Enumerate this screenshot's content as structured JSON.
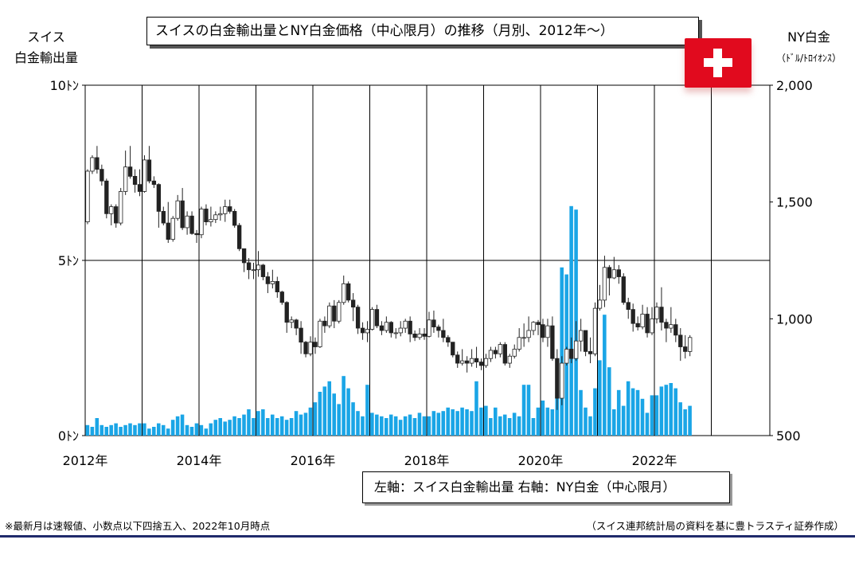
{
  "title": "スイスの白金輸出量とNY白金価格（中心限月）の推移（月別、2012年～）",
  "left_axis_title_1": "スイス",
  "left_axis_title_2": "白金輸出量",
  "right_axis_title_1": "NY白金",
  "right_axis_title_2": "（ﾄﾞﾙ/ﾄﾛｲｵﾝｽ）",
  "legend_text": "左軸：スイス白金輸出量  右軸：NY白金（中心限月）",
  "footnote_left": "※最新月は速報値、小数点以下四捨五入、2022年10月時点",
  "footnote_right": "（スイス連邦統計局の資料を基に豊トラスティ証券作成）",
  "flag_icon": "swiss-flag-icon",
  "colors": {
    "bar": "#1aa5e6",
    "up_candle": "#ffffff",
    "down_candle": "#222222",
    "grid": "#000000",
    "flag": "#e10a1e"
  },
  "chart_data": {
    "type": "bar+candlestick",
    "x_tick_labels": [
      "2012年",
      "2014年",
      "2016年",
      "2018年",
      "2020年",
      "2022年"
    ],
    "left_axis": {
      "tick_labels": [
        "0ﾄﾝ",
        "5ﾄﾝ",
        "10ﾄﾝ"
      ],
      "ylim": [
        0,
        10
      ]
    },
    "right_axis": {
      "tick_labels": [
        "500",
        "1,000",
        "1,500",
        "2,000"
      ],
      "ylim": [
        500,
        2000
      ]
    },
    "grid": true,
    "start_month": "2012-01",
    "series": [
      {
        "name": "スイス白金輸出量",
        "axis": "left",
        "values": [
          0.3,
          0.25,
          0.5,
          0.3,
          0.25,
          0.3,
          0.35,
          0.25,
          0.3,
          0.35,
          0.3,
          0.35,
          0.35,
          0.2,
          0.25,
          0.35,
          0.3,
          0.2,
          0.45,
          0.55,
          0.6,
          0.3,
          0.25,
          0.35,
          0.3,
          0.2,
          0.35,
          0.45,
          0.5,
          0.4,
          0.45,
          0.55,
          0.5,
          0.6,
          0.75,
          0.5,
          0.7,
          0.75,
          0.5,
          0.6,
          0.5,
          0.55,
          0.45,
          0.5,
          0.7,
          0.6,
          0.65,
          0.8,
          0.95,
          1.25,
          1.4,
          1.55,
          1.2,
          0.9,
          1.7,
          1.35,
          0.95,
          0.7,
          0.55,
          1.45,
          0.65,
          0.6,
          0.55,
          0.5,
          0.6,
          0.55,
          0.45,
          0.55,
          0.6,
          0.5,
          0.65,
          0.55,
          0.55,
          0.7,
          0.65,
          0.7,
          0.8,
          0.75,
          0.7,
          0.8,
          0.75,
          0.7,
          1.55,
          0.8,
          0.85,
          0.5,
          0.8,
          0.55,
          0.6,
          0.5,
          0.65,
          0.55,
          1.45,
          1.45,
          0.5,
          0.8,
          1.0,
          0.8,
          0.75,
          1.15,
          4.8,
          4.6,
          6.55,
          6.45,
          1.3,
          0.8,
          0.55,
          1.35,
          2.15,
          3.45,
          1.95,
          0.75,
          1.3,
          0.85,
          1.55,
          1.35,
          1.3,
          1.05,
          0.65,
          1.15,
          1.15,
          1.4,
          1.45,
          1.5,
          1.35,
          0.95,
          0.75,
          0.85
        ]
      },
      {
        "name": "NY白金（中心限月）",
        "axis": "right",
        "ohlc": [
          [
            1415,
            1640,
            1405,
            1632
          ],
          [
            1632,
            1700,
            1620,
            1690
          ],
          [
            1690,
            1740,
            1622,
            1640
          ],
          [
            1640,
            1660,
            1570,
            1590
          ],
          [
            1590,
            1600,
            1430,
            1450
          ],
          [
            1450,
            1490,
            1400,
            1480
          ],
          [
            1480,
            1490,
            1390,
            1410
          ],
          [
            1410,
            1560,
            1400,
            1545
          ],
          [
            1545,
            1720,
            1530,
            1650
          ],
          [
            1650,
            1740,
            1600,
            1610
          ],
          [
            1610,
            1640,
            1540,
            1575
          ],
          [
            1575,
            1640,
            1525,
            1545
          ],
          [
            1545,
            1700,
            1540,
            1680
          ],
          [
            1680,
            1740,
            1580,
            1590
          ],
          [
            1590,
            1610,
            1560,
            1575
          ],
          [
            1575,
            1580,
            1390,
            1460
          ],
          [
            1460,
            1480,
            1400,
            1410
          ],
          [
            1410,
            1500,
            1325,
            1340
          ],
          [
            1340,
            1440,
            1330,
            1430
          ],
          [
            1430,
            1530,
            1420,
            1505
          ],
          [
            1505,
            1560,
            1380,
            1390
          ],
          [
            1390,
            1460,
            1360,
            1440
          ],
          [
            1440,
            1460,
            1360,
            1365
          ],
          [
            1365,
            1380,
            1325,
            1360
          ],
          [
            1360,
            1480,
            1345,
            1470
          ],
          [
            1470,
            1490,
            1400,
            1415
          ],
          [
            1415,
            1480,
            1395,
            1425
          ],
          [
            1425,
            1460,
            1410,
            1445
          ],
          [
            1445,
            1480,
            1420,
            1450
          ],
          [
            1450,
            1510,
            1415,
            1480
          ],
          [
            1480,
            1510,
            1450,
            1460
          ],
          [
            1460,
            1470,
            1390,
            1400
          ],
          [
            1400,
            1410,
            1290,
            1300
          ],
          [
            1300,
            1300,
            1200,
            1240
          ],
          [
            1240,
            1260,
            1170,
            1210
          ],
          [
            1210,
            1240,
            1170,
            1210
          ],
          [
            1210,
            1290,
            1180,
            1230
          ],
          [
            1230,
            1235,
            1165,
            1180
          ],
          [
            1180,
            1200,
            1110,
            1150
          ],
          [
            1150,
            1210,
            1130,
            1160
          ],
          [
            1160,
            1180,
            1090,
            1115
          ],
          [
            1115,
            1120,
            1060,
            1070
          ],
          [
            1070,
            1075,
            940,
            985
          ],
          [
            985,
            1010,
            960,
            995
          ],
          [
            995,
            1000,
            930,
            960
          ],
          [
            960,
            990,
            850,
            900
          ],
          [
            900,
            905,
            835,
            850
          ],
          [
            850,
            925,
            840,
            900
          ],
          [
            900,
            920,
            850,
            880
          ],
          [
            880,
            1000,
            875,
            990
          ],
          [
            990,
            1010,
            940,
            970
          ],
          [
            970,
            1070,
            960,
            1055
          ],
          [
            1055,
            1080,
            960,
            990
          ],
          [
            990,
            1080,
            980,
            1070
          ],
          [
            1070,
            1185,
            1060,
            1150
          ],
          [
            1150,
            1160,
            1070,
            1080
          ],
          [
            1080,
            1110,
            990,
            1050
          ],
          [
            1050,
            1060,
            935,
            960
          ],
          [
            960,
            985,
            910,
            940
          ],
          [
            940,
            990,
            900,
            955
          ],
          [
            955,
            1050,
            950,
            1040
          ],
          [
            1040,
            1060,
            960,
            970
          ],
          [
            970,
            990,
            930,
            950
          ],
          [
            950,
            1010,
            940,
            985
          ],
          [
            985,
            990,
            920,
            940
          ],
          [
            940,
            960,
            915,
            940
          ],
          [
            940,
            990,
            925,
            960
          ],
          [
            960,
            1000,
            940,
            990
          ],
          [
            990,
            1010,
            900,
            935
          ],
          [
            935,
            950,
            905,
            920
          ],
          [
            920,
            960,
            910,
            935
          ],
          [
            935,
            960,
            910,
            925
          ],
          [
            925,
            1030,
            920,
            995
          ],
          [
            995,
            1035,
            940,
            965
          ],
          [
            965,
            975,
            920,
            950
          ],
          [
            950,
            1000,
            900,
            920
          ],
          [
            920,
            930,
            880,
            900
          ],
          [
            900,
            900,
            835,
            845
          ],
          [
            845,
            860,
            790,
            810
          ],
          [
            810,
            870,
            800,
            820
          ],
          [
            820,
            840,
            770,
            810
          ],
          [
            810,
            870,
            795,
            830
          ],
          [
            830,
            880,
            790,
            815
          ],
          [
            815,
            830,
            780,
            800
          ],
          [
            800,
            850,
            790,
            830
          ],
          [
            830,
            880,
            815,
            865
          ],
          [
            865,
            880,
            830,
            850
          ],
          [
            850,
            900,
            835,
            890
          ],
          [
            890,
            900,
            800,
            810
          ],
          [
            810,
            850,
            790,
            840
          ],
          [
            840,
            890,
            830,
            870
          ],
          [
            870,
            960,
            860,
            920
          ],
          [
            920,
            980,
            880,
            920
          ],
          [
            920,
            1010,
            900,
            950
          ],
          [
            950,
            990,
            930,
            985
          ],
          [
            985,
            995,
            930,
            975
          ],
          [
            975,
            1000,
            900,
            920
          ],
          [
            920,
            1000,
            880,
            970
          ],
          [
            970,
            1010,
            820,
            830
          ],
          [
            830,
            870,
            610,
            660
          ],
          [
            660,
            840,
            630,
            810
          ],
          [
            810,
            880,
            800,
            870
          ],
          [
            870,
            920,
            810,
            830
          ],
          [
            830,
            990,
            820,
            905
          ],
          [
            905,
            1000,
            860,
            950
          ],
          [
            950,
            950,
            840,
            860
          ],
          [
            860,
            920,
            810,
            850
          ],
          [
            850,
            1070,
            840,
            1045
          ],
          [
            1045,
            1145,
            1035,
            1080
          ],
          [
            1080,
            1270,
            1050,
            1220
          ],
          [
            1220,
            1230,
            1100,
            1175
          ],
          [
            1175,
            1265,
            1170,
            1210
          ],
          [
            1210,
            1230,
            1150,
            1180
          ],
          [
            1180,
            1195,
            1060,
            1070
          ],
          [
            1070,
            1090,
            1000,
            1040
          ],
          [
            1040,
            1065,
            945,
            980
          ],
          [
            980,
            1010,
            950,
            965
          ],
          [
            965,
            1060,
            955,
            1020
          ],
          [
            1020,
            1050,
            920,
            940
          ],
          [
            940,
            1050,
            930,
            1000
          ],
          [
            1000,
            1070,
            980,
            1050
          ],
          [
            1050,
            1135,
            950,
            985
          ],
          [
            985,
            1000,
            900,
            960
          ],
          [
            960,
            1050,
            940,
            975
          ],
          [
            975,
            1000,
            900,
            930
          ],
          [
            930,
            960,
            820,
            880
          ],
          [
            880,
            930,
            830,
            860
          ],
          [
            860,
            930,
            840,
            920
          ]
        ]
      }
    ]
  }
}
